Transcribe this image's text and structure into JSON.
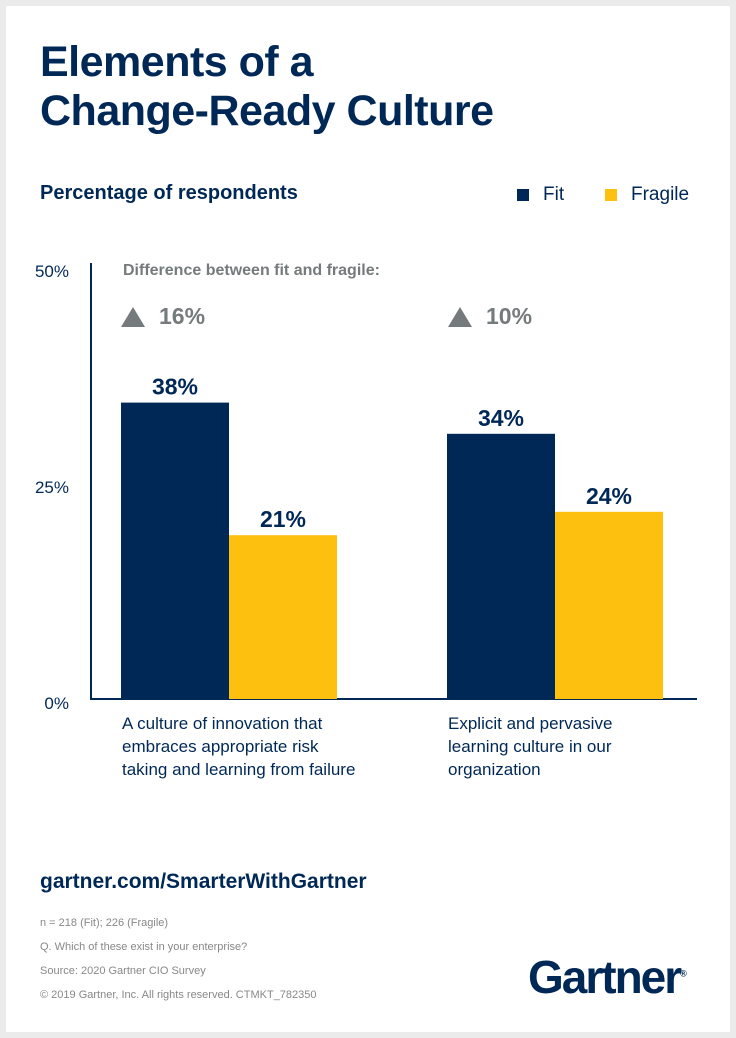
{
  "title_lines": [
    "Elements of a",
    "Change-Ready Culture"
  ],
  "subtitle": "Percentage of respondents",
  "difference_header": "Difference between fit and fragile:",
  "differences": [
    "16%",
    "10%"
  ],
  "chart_data": {
    "type": "bar",
    "title": "Elements of a Change-Ready Culture",
    "ylabel": "Percentage of respondents",
    "categories": [
      "A culture of innovation that embraces appropriate risk taking and learning from failure",
      "Explicit and pervasive learning culture in our organization"
    ],
    "category_lines": [
      [
        "A culture of innovation that",
        "embraces appropriate risk",
        "taking and learning from failure"
      ],
      [
        "Explicit and pervasive",
        "learning culture in our",
        "organization"
      ]
    ],
    "series": [
      {
        "name": "Fit",
        "values": [
          38,
          34
        ],
        "labels": [
          "38%",
          "34%"
        ],
        "color": "#002856"
      },
      {
        "name": "Fragile",
        "values": [
          21,
          24
        ],
        "labels": [
          "21%",
          "24%"
        ],
        "color": "#fdc00f"
      }
    ],
    "ylim": [
      0,
      50
    ],
    "yticks": [
      {
        "value": 50,
        "label": "50%"
      },
      {
        "value": 25,
        "label": "25%"
      },
      {
        "value": 0,
        "label": "0%"
      }
    ],
    "grid": false,
    "legend": "top-right"
  },
  "footer": {
    "url": "gartner.com/SmarterWithGartner",
    "notes": [
      "n = 218 (Fit); 226 (Fragile)",
      "Q. Which of these exist in your enterprise?",
      "Source: 2020 Gartner CIO Survey",
      "© 2019 Gartner, Inc. All rights reserved. CTMKT_782350"
    ],
    "logo": "Gartner"
  }
}
